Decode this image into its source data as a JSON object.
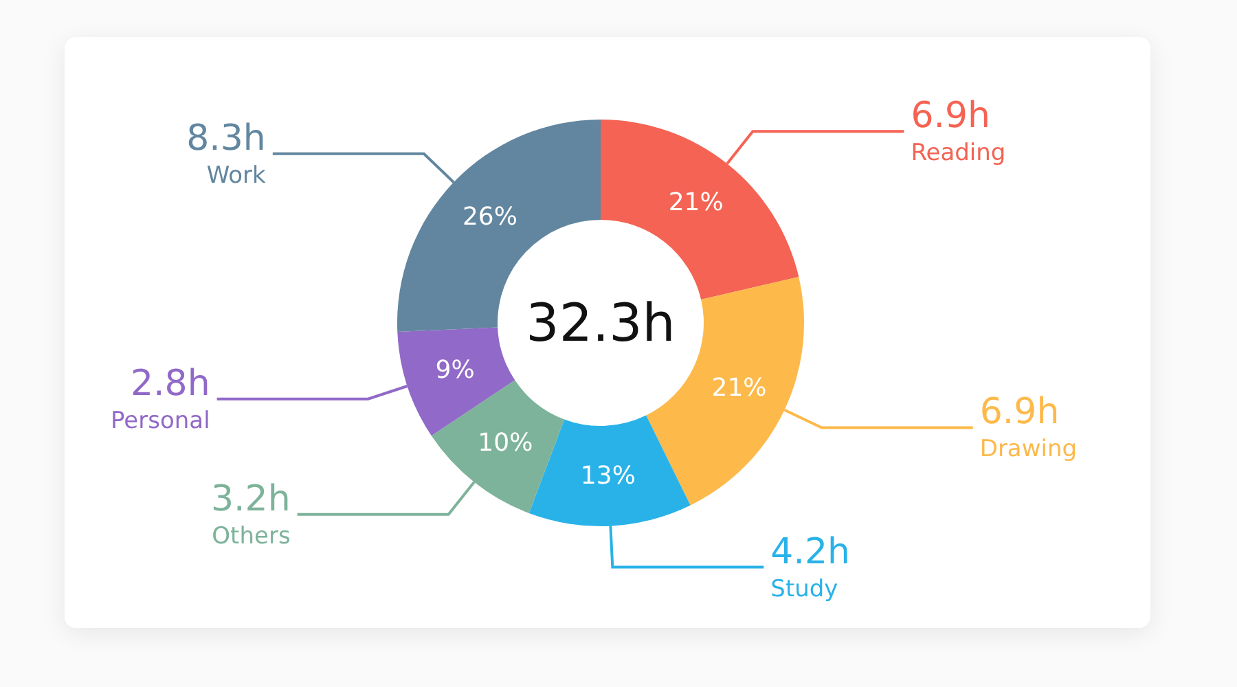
{
  "chart_data": {
    "type": "donut",
    "categories": [
      "Reading",
      "Drawing",
      "Study",
      "Others",
      "Personal",
      "Work"
    ],
    "values": [
      6.9,
      6.9,
      4.2,
      3.2,
      2.8,
      8.3
    ],
    "value_labels": [
      "6.9h",
      "6.9h",
      "4.2h",
      "3.2h",
      "2.8h",
      "8.3h"
    ],
    "colors": [
      "#f46353",
      "#fdb94a",
      "#29b2e8",
      "#7db39a",
      "#9169c8",
      "#62869f"
    ],
    "annotations": [
      "32.3h",
      {
        "text": "21%",
        "x": "Reading"
      },
      {
        "text": "21%",
        "x": "Drawing"
      },
      {
        "text": "13%",
        "x": "Study"
      },
      {
        "text": "10%",
        "x": "Others"
      },
      {
        "text": "9%",
        "x": "Personal"
      },
      {
        "text": "26%",
        "x": "Work"
      }
    ],
    "legend": false
  }
}
